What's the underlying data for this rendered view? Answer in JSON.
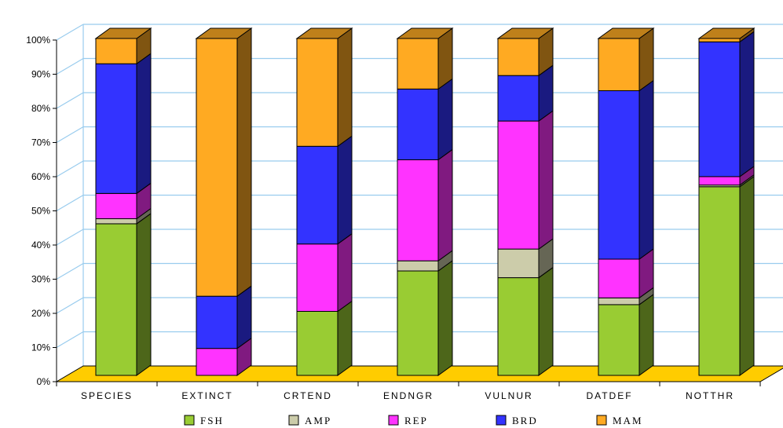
{
  "chart_data": {
    "type": "bar",
    "stacked": true,
    "percent_stacked": true,
    "three_d": true,
    "categories": [
      "SPECIES",
      "EXTINCT",
      "CRTEND",
      "ENDNGR",
      "VULNUR",
      "DATDEF",
      "NOTTHR"
    ],
    "series": [
      {
        "name": "FSH",
        "color": "#99CC33",
        "values": [
          45,
          0,
          19,
          31,
          29,
          21,
          56
        ]
      },
      {
        "name": "AMP",
        "color": "#CCCCAA",
        "values": [
          1.5,
          0,
          0,
          3,
          8.5,
          2,
          0.5
        ]
      },
      {
        "name": "REP",
        "color": "#FF33FF",
        "values": [
          7.5,
          8,
          20,
          30,
          38,
          11.5,
          2.5
        ]
      },
      {
        "name": "BRD",
        "color": "#3333FF",
        "values": [
          38.5,
          15.5,
          29,
          21,
          13.5,
          50,
          40
        ]
      },
      {
        "name": "MAM",
        "color": "#FFAA22",
        "values": [
          7.5,
          76.5,
          32,
          15,
          11,
          15.5,
          1
        ]
      }
    ],
    "y_tick_labels": [
      "0%",
      "10%",
      "20%",
      "30%",
      "40%",
      "50%",
      "60%",
      "70%",
      "80%",
      "90%",
      "100%"
    ],
    "ylim": [
      0,
      100
    ],
    "grid": true,
    "legend_position": "bottom",
    "floor_color": "#FFCC00",
    "gridline_color": "#99CCEE"
  }
}
